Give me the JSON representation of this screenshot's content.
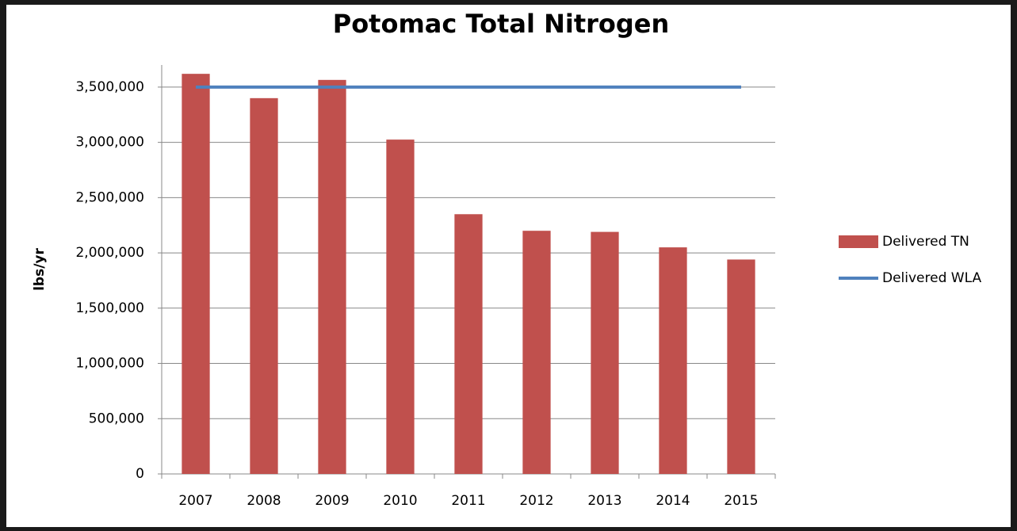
{
  "chart_data": {
    "type": "bar-line",
    "title": "Potomac Total Nitrogen",
    "y_label": "lbs/yr",
    "categories": [
      "2007",
      "2008",
      "2009",
      "2010",
      "2011",
      "2012",
      "2013",
      "2014",
      "2015"
    ],
    "series": [
      {
        "name": "Delivered TN",
        "type": "bar",
        "color": "#c0504d",
        "values": [
          3620000,
          3400000,
          3565000,
          3025000,
          2350000,
          2200000,
          2190000,
          2050000,
          1940000
        ]
      },
      {
        "name": "Delivered WLA",
        "type": "line",
        "color": "#4f81bd",
        "values": [
          3500000,
          3500000,
          3500000,
          3500000,
          3500000,
          3500000,
          3500000,
          3500000,
          3500000
        ]
      }
    ],
    "ylim": [
      0,
      3700000
    ],
    "yticks": [
      0,
      {
        "value": 500000,
        "label": "500,000"
      },
      {
        "value": 1000000,
        "label": "1,000,000"
      },
      {
        "value": 1500000,
        "label": "1,500,000"
      },
      {
        "value": 2000000,
        "label": "2,000,000"
      },
      {
        "value": 2500000,
        "label": "2,500,000"
      },
      {
        "value": 3000000,
        "label": "3,000,000"
      },
      {
        "value": 3500000,
        "label": "3,500,000"
      }
    ],
    "grid": true,
    "legend": "right"
  }
}
